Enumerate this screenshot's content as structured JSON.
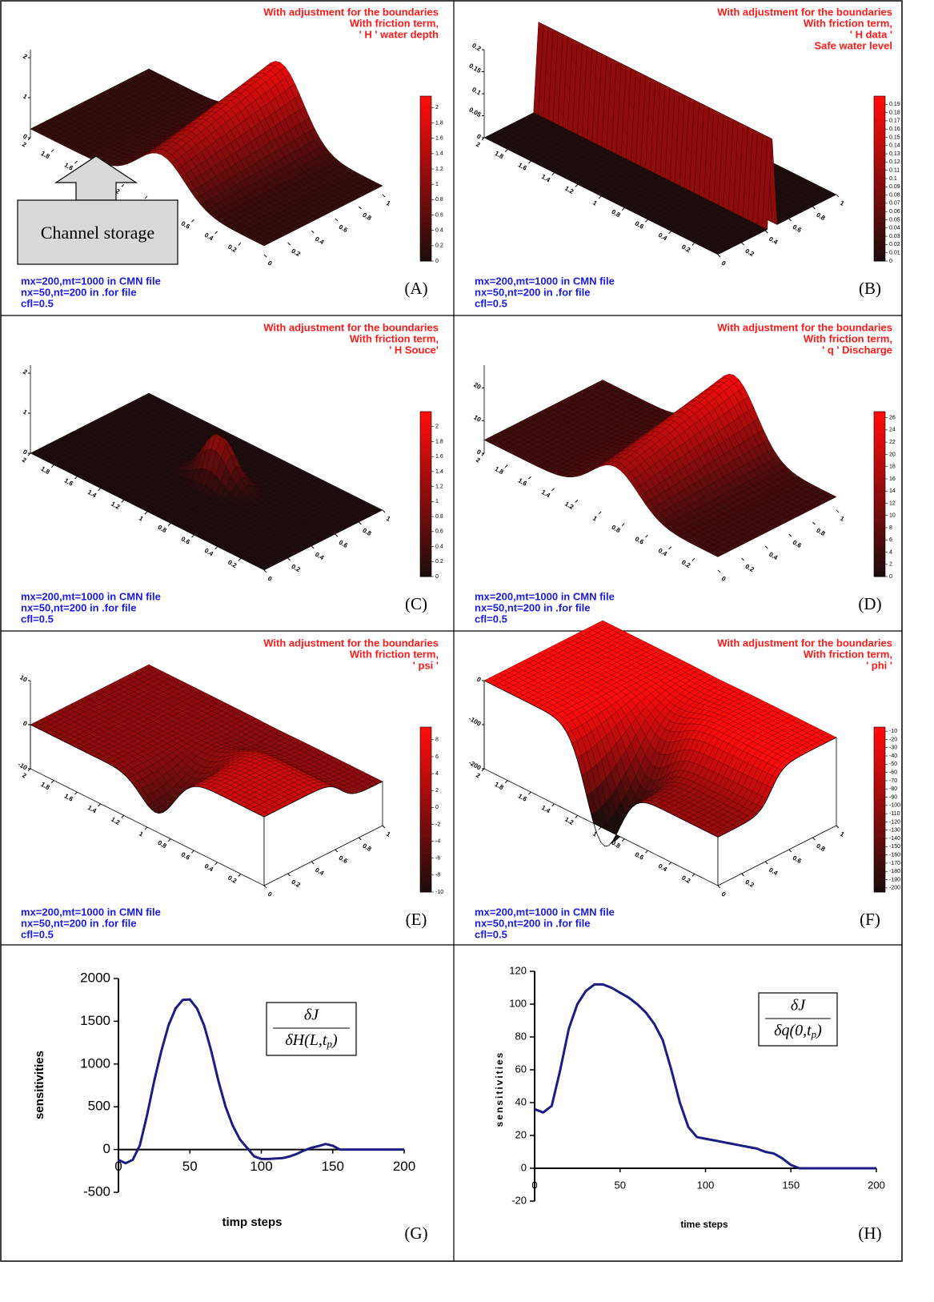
{
  "chart_data": [
    {
      "type": "surface",
      "panel_label": "(A)",
      "title": [
        "With adjustment for the boundaries",
        "With friction term,",
        "' H ' water depth"
      ],
      "notes": [
        "mx=200,mt=1000 in CMN file",
        "nx=50,nt=200 in .for file",
        "cfl=0.5"
      ],
      "annotation": "Channel storage",
      "zlim": [
        0,
        2.2
      ],
      "zticks": [
        0,
        1,
        2
      ],
      "ulim": [
        0,
        2
      ],
      "uticks": [
        0.2,
        0.4,
        0.6,
        0.8,
        1,
        1.2,
        1.4,
        1.6,
        1.8,
        2
      ],
      "vlim": [
        0,
        1
      ],
      "vticks": [
        0,
        0.2,
        0.4,
        0.6,
        0.8,
        1
      ],
      "colorbar": {
        "clim": [
          0,
          2.15
        ],
        "cticks": [
          0,
          0.2,
          0.4,
          0.6,
          0.8,
          1,
          1.2,
          1.4,
          1.6,
          1.8,
          2
        ]
      }
    },
    {
      "type": "surface",
      "panel_label": "(B)",
      "title": [
        "With adjustment for the boundaries",
        "With friction term,",
        "' H data '",
        "Safe water level"
      ],
      "notes": [
        "mx=200,mt=1000 in CMN file",
        "nx=50,nt=200 in .for file",
        "cfl=0.5"
      ],
      "zlim": [
        0,
        0.2
      ],
      "zticks": [
        0,
        0.05,
        0.1,
        0.15,
        0.2
      ],
      "ulim": [
        0,
        2
      ],
      "uticks": [
        0.2,
        0.4,
        0.6,
        0.8,
        1,
        1.2,
        1.4,
        1.6,
        1.8,
        2
      ],
      "vlim": [
        0,
        1
      ],
      "vticks": [
        0,
        0.2,
        0.4,
        0.6,
        0.8,
        1
      ],
      "colorbar": {
        "clim": [
          0,
          0.2
        ],
        "cticks": [
          0,
          0.01,
          0.02,
          0.03,
          0.04,
          0.05,
          0.06,
          0.07,
          0.08,
          0.09,
          0.1,
          0.11,
          0.12,
          0.13,
          0.14,
          0.15,
          0.16,
          0.17,
          0.18,
          0.19
        ]
      }
    },
    {
      "type": "surface",
      "panel_label": "(C)",
      "title": [
        "With adjustment for the boundaries",
        "With friction term,",
        "' H Souce'"
      ],
      "notes": [
        "mx=200,mt=1000 in CMN file",
        "nx=50,nt=200 in .for file",
        "cfl=0.5"
      ],
      "zlim": [
        0,
        2.2
      ],
      "zticks": [
        0,
        1,
        2
      ],
      "ulim": [
        0,
        2
      ],
      "uticks": [
        0.2,
        0.4,
        0.6,
        0.8,
        1,
        1.2,
        1.4,
        1.6,
        1.8,
        2
      ],
      "vlim": [
        0,
        1
      ],
      "vticks": [
        0,
        0.2,
        0.4,
        0.6,
        0.8,
        1
      ],
      "colorbar": {
        "clim": [
          0,
          2.2
        ],
        "cticks": [
          0,
          0.2,
          0.4,
          0.6,
          0.8,
          1,
          1.2,
          1.4,
          1.6,
          1.8,
          2
        ]
      }
    },
    {
      "type": "surface",
      "panel_label": "(D)",
      "title": [
        "With adjustment for the boundaries",
        "With friction term,",
        "' q ' Discharge"
      ],
      "notes": [
        "mx=200,mt=1000 in CMN file",
        "nx=50,nt=200 in .for file",
        "cfl=0.5"
      ],
      "zlim": [
        0,
        27
      ],
      "zticks": [
        0,
        10,
        20
      ],
      "ulim": [
        0,
        2
      ],
      "uticks": [
        0.2,
        0.4,
        0.6,
        0.8,
        1,
        1.2,
        1.4,
        1.6,
        1.8,
        2
      ],
      "vlim": [
        0,
        1
      ],
      "vticks": [
        0,
        0.2,
        0.4,
        0.6,
        0.8,
        1
      ],
      "colorbar": {
        "clim": [
          0,
          27
        ],
        "cticks": [
          0,
          2,
          4,
          6,
          8,
          10,
          12,
          14,
          16,
          18,
          20,
          22,
          24,
          26
        ]
      }
    },
    {
      "type": "surface",
      "panel_label": "(E)",
      "title": [
        "With adjustment for the boundaries",
        "With friction term,",
        "' psi '"
      ],
      "notes": [
        "mx=200,mt=1000 in CMN file",
        "nx=50,nt=200 in .for file",
        "cfl=0.5"
      ],
      "zlim": [
        -10,
        10
      ],
      "zticks": [
        -10,
        0,
        10
      ],
      "ulim": [
        0,
        2
      ],
      "uticks": [
        0.2,
        0.4,
        0.6,
        0.8,
        1,
        1.2,
        1.4,
        1.6,
        1.8,
        2
      ],
      "vlim": [
        0,
        1
      ],
      "vticks": [
        0,
        0.2,
        0.4,
        0.6,
        0.8,
        1
      ],
      "colorbar": {
        "clim": [
          -10,
          9.5
        ],
        "cticks": [
          -10,
          -8,
          -6,
          -4,
          -2,
          0,
          2,
          4,
          6,
          8
        ]
      }
    },
    {
      "type": "surface",
      "panel_label": "(F)",
      "title": [
        "With adjustment for the boundaries",
        "With friction term,",
        "' phi '"
      ],
      "notes": [
        "mx=200,mt=1000 in CMN file",
        "nx=50,nt=200 in .for file",
        "cfl=0.5"
      ],
      "zlim": [
        -200,
        0
      ],
      "zticks": [
        -200,
        -100,
        0
      ],
      "ulim": [
        0,
        2
      ],
      "uticks": [
        0.2,
        0.4,
        0.6,
        0.8,
        1,
        1.2,
        1.4,
        1.6,
        1.8,
        2
      ],
      "vlim": [
        0,
        1
      ],
      "vticks": [
        0,
        0.2,
        0.4,
        0.6,
        0.8,
        1
      ],
      "colorbar": {
        "clim": [
          -205,
          -5
        ],
        "cticks": [
          -200,
          -190,
          -180,
          -170,
          -160,
          -150,
          -140,
          -130,
          -120,
          -110,
          -100,
          -90,
          -80,
          -70,
          -60,
          -50,
          -40,
          -30,
          -20,
          -10
        ]
      }
    },
    {
      "type": "line",
      "panel_label": "(G)",
      "color": "#1c1c84",
      "ylabel": "sensitivities",
      "xlabel": "timp steps",
      "formula": {
        "numerator": "δJ",
        "denominator": [
          "δH(L,t",
          "p",
          ")"
        ]
      },
      "x": [
        0,
        5,
        10,
        15,
        20,
        25,
        30,
        35,
        40,
        45,
        50,
        55,
        60,
        65,
        70,
        75,
        80,
        85,
        90,
        95,
        100,
        105,
        110,
        115,
        120,
        125,
        130,
        135,
        140,
        145,
        150,
        155,
        160,
        165,
        170,
        175,
        180,
        185,
        190,
        195,
        200
      ],
      "values": [
        -120,
        -160,
        -120,
        50,
        400,
        800,
        1150,
        1450,
        1650,
        1750,
        1755,
        1650,
        1450,
        1150,
        800,
        500,
        280,
        120,
        20,
        -80,
        -110,
        -110,
        -105,
        -100,
        -80,
        -50,
        -10,
        20,
        40,
        65,
        45,
        0,
        0,
        0,
        0,
        0,
        0,
        0,
        0,
        0,
        0
      ],
      "xlim": [
        0,
        200
      ],
      "xticks": [
        0,
        50,
        100,
        150,
        200
      ],
      "ylim": [
        -500,
        2000
      ],
      "yticks": [
        -500,
        0,
        500,
        1000,
        1500,
        2000
      ]
    },
    {
      "type": "line",
      "panel_label": "(H)",
      "color": "#1c1c84",
      "ylabel": "sensitivities",
      "xlabel": "time steps",
      "formula": {
        "numerator": "δJ",
        "denominator": [
          "δq(0,t",
          "p",
          ")"
        ]
      },
      "x": [
        0,
        5,
        10,
        15,
        20,
        25,
        30,
        35,
        40,
        45,
        50,
        55,
        60,
        65,
        70,
        75,
        80,
        85,
        90,
        95,
        100,
        105,
        110,
        115,
        120,
        125,
        130,
        135,
        140,
        145,
        150,
        155,
        160,
        165,
        170,
        175,
        180,
        185,
        190,
        195,
        200
      ],
      "values": [
        36,
        34,
        38,
        60,
        85,
        100,
        108,
        112,
        112,
        110,
        107,
        104,
        100,
        95,
        88,
        78,
        60,
        40,
        25,
        19,
        18,
        17,
        16,
        15,
        14,
        13,
        12,
        10,
        9,
        6,
        2,
        0,
        0,
        0,
        0,
        0,
        0,
        0,
        0,
        0,
        0
      ],
      "xlim": [
        0,
        200
      ],
      "xticks": [
        0,
        50,
        100,
        150,
        200
      ],
      "ylim": [
        -20,
        120
      ],
      "yticks": [
        -20,
        0,
        20,
        40,
        60,
        80,
        100,
        120
      ]
    }
  ]
}
